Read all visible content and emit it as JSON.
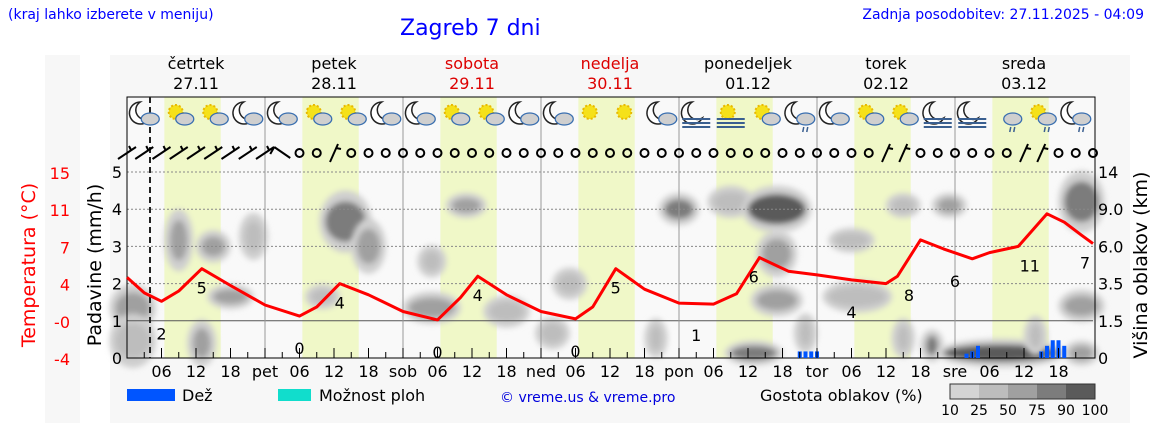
{
  "header": {
    "hint": "(kraj lahko izberete v meniju)",
    "title": "Zagreb 7 dni",
    "updated": "Zadnja posodobitev: 27.11.2025 - 04:09"
  },
  "colors": {
    "temperature": "#ff0000",
    "rain": "#0055ff",
    "storm": "#11ddcc",
    "daylight": "#f0f8c8",
    "title": "#0000ff",
    "weekend": "#dd0000"
  },
  "days": [
    {
      "name": "četrtek",
      "date": "27.11",
      "weekend": false
    },
    {
      "name": "petek",
      "date": "28.11",
      "weekend": false
    },
    {
      "name": "sobota",
      "date": "29.11",
      "weekend": true
    },
    {
      "name": "nedelja",
      "date": "30.11",
      "weekend": true
    },
    {
      "name": "ponedeljek",
      "date": "01.12",
      "weekend": false
    },
    {
      "name": "torek",
      "date": "02.12",
      "weekend": false
    },
    {
      "name": "sreda",
      "date": "03.12",
      "weekend": false
    }
  ],
  "legend": {
    "rain": "Dež",
    "storm": "Možnost ploh",
    "credit": "© vreme.us & vreme.pro",
    "cloud_density": "Gostota oblakov (%)",
    "density_ticks": [
      "10",
      "25",
      "50",
      "75",
      "90",
      "100"
    ]
  },
  "chart_data": {
    "type": "line",
    "x_unit": "hours from 27.11 00:00",
    "xlim": [
      0,
      168
    ],
    "x_tick_labels": [
      "06",
      "12",
      "18",
      "pet",
      "06",
      "12",
      "18",
      "sob",
      "06",
      "12",
      "18",
      "ned",
      "06",
      "12",
      "18",
      "pon",
      "06",
      "12",
      "18",
      "tor",
      "06",
      "12",
      "18",
      "sre",
      "06",
      "12",
      "18"
    ],
    "now_hour": 4,
    "daylight": [
      6.5,
      16.3
    ],
    "left_axis": {
      "label": "Padavine (mm/h)",
      "ticks": [
        "0",
        "1",
        "2",
        "3",
        "4",
        "5"
      ],
      "ylim": [
        0,
        5
      ]
    },
    "temp_axis": {
      "label": "Temperatura (°C)",
      "ticks": [
        "-4",
        "-0",
        "4",
        "7",
        "11",
        "15"
      ]
    },
    "right_axis": {
      "label": "Višina oblakov (km)",
      "ticks": [
        "0",
        "1.5",
        "3.5",
        "6.0",
        "9.0",
        "14"
      ]
    },
    "temperature": [
      [
        0,
        4.5
      ],
      [
        3,
        3.0
      ],
      [
        6,
        2.1
      ],
      [
        9,
        3.2
      ],
      [
        13,
        5.2
      ],
      [
        18,
        3.8
      ],
      [
        24,
        1.7
      ],
      [
        30,
        0.5
      ],
      [
        33,
        1.5
      ],
      [
        37,
        4.0
      ],
      [
        42,
        2.8
      ],
      [
        48,
        1.0
      ],
      [
        54,
        0.1
      ],
      [
        58,
        2.5
      ],
      [
        61,
        4.6
      ],
      [
        66,
        2.8
      ],
      [
        72,
        1.0
      ],
      [
        78,
        0.2
      ],
      [
        81,
        1.5
      ],
      [
        85,
        5.2
      ],
      [
        90,
        3.4
      ],
      [
        96,
        1.9
      ],
      [
        102,
        1.8
      ],
      [
        106,
        2.9
      ],
      [
        110,
        6.1
      ],
      [
        115,
        5.0
      ],
      [
        120,
        4.7
      ],
      [
        126,
        4.3
      ],
      [
        132,
        4.0
      ],
      [
        134,
        4.6
      ],
      [
        138,
        7.7
      ],
      [
        142,
        6.8
      ],
      [
        147,
        6.0
      ],
      [
        150,
        6.5
      ],
      [
        155,
        7.0
      ],
      [
        160,
        10.5
      ],
      [
        163,
        9.6
      ],
      [
        166,
        8.2
      ],
      [
        168,
        7.3
      ]
    ],
    "temperature_labels": [
      [
        6,
        "2"
      ],
      [
        13,
        "5"
      ],
      [
        30,
        "0"
      ],
      [
        37,
        "4"
      ],
      [
        54,
        "0"
      ],
      [
        61,
        "4"
      ],
      [
        78,
        "0"
      ],
      [
        85,
        "5"
      ],
      [
        99,
        "1"
      ],
      [
        109,
        "6"
      ],
      [
        126,
        "4"
      ],
      [
        136,
        "8"
      ],
      [
        144,
        "6"
      ],
      [
        157,
        "11"
      ],
      [
        168,
        "7"
      ]
    ],
    "rain": [
      [
        117,
        0.05
      ],
      [
        118,
        0.05
      ],
      [
        119,
        0.05
      ],
      [
        120,
        0.05
      ],
      [
        146,
        0.03
      ],
      [
        147,
        0.05
      ],
      [
        148,
        0.1
      ],
      [
        159,
        0.05
      ],
      [
        160,
        0.1
      ],
      [
        161,
        0.15
      ],
      [
        162,
        0.15
      ],
      [
        163,
        0.1
      ]
    ],
    "clouds": [
      [
        1,
        2.2,
        50,
        3,
        0.5
      ],
      [
        1,
        0.7,
        25,
        3,
        0.6
      ],
      [
        9,
        6.5,
        50,
        1.5,
        0.7
      ],
      [
        15,
        6.0,
        50,
        2,
        0.3
      ],
      [
        13,
        0.6,
        50,
        1.5,
        0.5
      ],
      [
        18,
        2.8,
        50,
        3,
        0.2
      ],
      [
        22,
        6.8,
        25,
        1.5,
        0.5
      ],
      [
        34,
        2.8,
        25,
        2,
        0.2
      ],
      [
        38,
        8.0,
        75,
        3.5,
        0.7
      ],
      [
        42,
        6.0,
        50,
        2,
        0.6
      ],
      [
        53,
        2.2,
        50,
        4,
        0.3
      ],
      [
        53,
        5.0,
        25,
        1.5,
        0.3
      ],
      [
        59,
        9.5,
        50,
        2.5,
        0.2
      ],
      [
        66,
        2.0,
        25,
        3,
        0.3
      ],
      [
        74,
        1.0,
        25,
        2,
        0.3
      ],
      [
        77,
        3.5,
        25,
        2,
        0.3
      ],
      [
        92,
        0.8,
        25,
        1,
        0.4
      ],
      [
        96,
        9.0,
        75,
        2.5,
        0.3
      ],
      [
        105,
        10.0,
        25,
        3,
        0.3
      ],
      [
        109,
        0.2,
        75,
        4,
        0.2
      ],
      [
        113,
        9.0,
        90,
        5,
        0.5
      ],
      [
        113,
        5.5,
        50,
        2.5,
        0.5
      ],
      [
        113,
        2.6,
        50,
        3.5,
        0.3
      ],
      [
        118,
        1.0,
        25,
        1,
        0.4
      ],
      [
        126,
        6.5,
        25,
        3,
        0.2
      ],
      [
        127,
        2.8,
        25,
        5,
        0.3
      ],
      [
        135,
        9.5,
        25,
        2,
        0.2
      ],
      [
        135,
        0.8,
        25,
        1,
        0.4
      ],
      [
        143,
        9.5,
        50,
        2,
        0.2
      ],
      [
        140,
        0.5,
        75,
        1,
        0.3
      ],
      [
        152,
        0.2,
        90,
        10,
        0.25
      ],
      [
        158,
        0.9,
        25,
        1,
        0.4
      ],
      [
        166,
        10.0,
        75,
        3,
        0.7
      ],
      [
        166,
        2.3,
        50,
        3,
        0.3
      ],
      [
        166,
        0.2,
        50,
        2,
        0.2
      ]
    ],
    "weather_icons": [
      "moon-cloud",
      "sun-cloud",
      "cloud-sun",
      "moon-cloud",
      "moon-cloud",
      "sun-cloud",
      "cloud-sun",
      "moon-cloud",
      "moon-cloud",
      "sun-cloud",
      "sun-cloud",
      "moon-cloud",
      "moon-cloud",
      "sun",
      "sun",
      "moon-cloud",
      "moon-fog",
      "sun-fog",
      "cloud-sun",
      "moon-cloud-drizzle",
      "moon-cloud",
      "cloud-sun",
      "sun-cloud",
      "moon-fog",
      "moon-fog",
      "cloud-drizzle",
      "sun-cloud-drizzle",
      "moon-cloud-drizzle"
    ],
    "wind": [
      "barb",
      "barb",
      "barb",
      "barb",
      "barb",
      "barb",
      "barb",
      "barb",
      "barb",
      "barb-nw",
      "calm",
      "calm",
      "barb-s",
      "calm",
      "calm",
      "calm",
      "calm",
      "calm",
      "calm",
      "calm",
      "calm",
      "calm",
      "calm",
      "calm",
      "calm",
      "calm",
      "calm",
      "calm",
      "calm",
      "calm",
      "calm",
      "calm",
      "calm",
      "calm",
      "calm",
      "calm",
      "calm",
      "calm",
      "calm",
      "calm",
      "calm",
      "calm",
      "calm",
      "calm",
      "barb-n",
      "barb-n",
      "calm",
      "calm",
      "calm",
      "calm",
      "calm",
      "calm",
      "barb-n",
      "barb-n",
      "calm",
      "calm",
      "calm"
    ]
  }
}
